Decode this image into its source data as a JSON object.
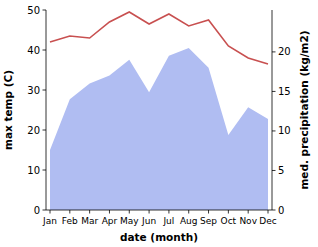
{
  "chart_data": {
    "type": "line",
    "categories": [
      "Jan",
      "Feb",
      "Mar",
      "Apr",
      "May",
      "Jun",
      "Jul",
      "Aug",
      "Sep",
      "Oct",
      "Nov",
      "Dec"
    ],
    "x_label": "date (month)",
    "y_label": "max temp (C)",
    "y2_label": "med. precipitation (kg/m2)",
    "ylim": [
      0,
      50
    ],
    "yticks": [
      0,
      10,
      20,
      30,
      40,
      50
    ],
    "y2lim": [
      0,
      25.3
    ],
    "y2ticks": [
      0,
      5,
      10,
      15,
      20
    ],
    "series": [
      {
        "name": "max temp",
        "type": "line",
        "color": "#c85050",
        "values": [
          42,
          43.5,
          43,
          47,
          49.5,
          46.5,
          49,
          46,
          47.5,
          41,
          38,
          36.5
        ]
      },
      {
        "name": "med. precipitation",
        "type": "area",
        "axis": "y2",
        "color": "#b0bdf2",
        "values": [
          7.6,
          14,
          16,
          17,
          19,
          14.9,
          19.5,
          20.5,
          18,
          9.5,
          13,
          11.5
        ]
      }
    ]
  }
}
